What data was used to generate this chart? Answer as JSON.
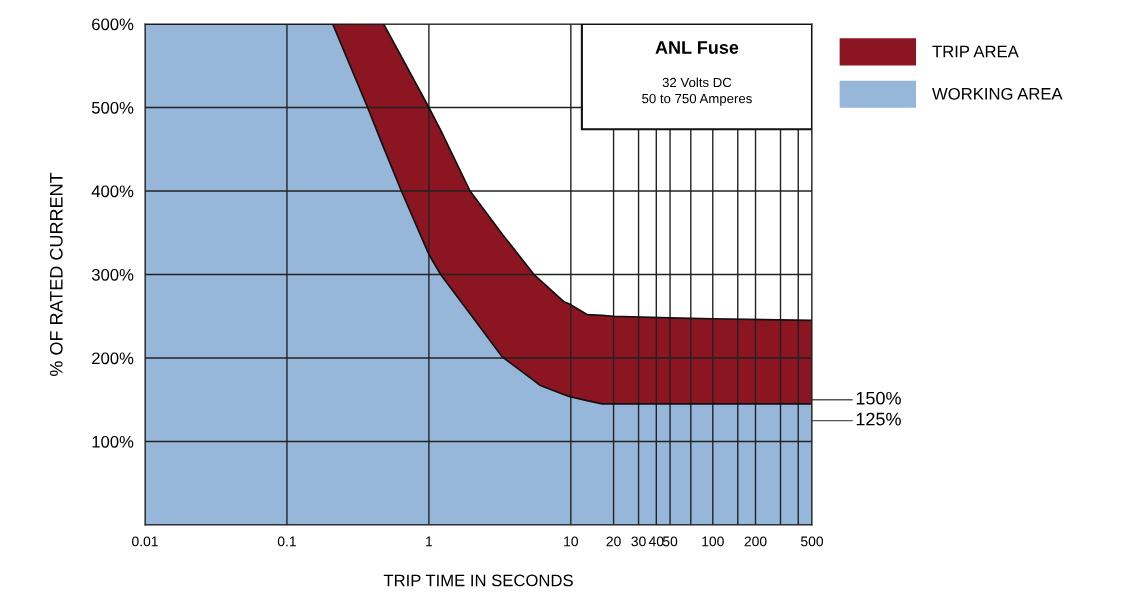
{
  "chart_data": {
    "type": "area",
    "stacked": true,
    "title": "ANL Fuse",
    "subtitle": "32 Volts DC\n50 to 750 Amperes",
    "xlabel": "TRIP TIME IN SECONDS",
    "ylabel": "% OF RATED CURRENT",
    "x": [
      0.01,
      0.21,
      0.37,
      0.48,
      0.64,
      1.0,
      1.21,
      1.95,
      3.3,
      5.5,
      6.1,
      9.0,
      9.7,
      13,
      16.6,
      20,
      50,
      100,
      500
    ],
    "series": [
      {
        "name": "WORKING AREA",
        "color": "#97b7da",
        "values": [
          600,
          600,
          500,
          452,
          400,
          324,
          300,
          253,
          201,
          173,
          167,
          156,
          154,
          149,
          145,
          145,
          145,
          145,
          145
        ]
      },
      {
        "name": "TRIP AREA",
        "color": "#8b1520",
        "values": [
          0,
          0,
          100,
          148,
          161,
          176,
          173,
          147,
          147,
          127,
          126,
          111,
          111,
          103,
          106,
          105,
          103,
          102,
          100
        ]
      }
    ],
    "log": "x",
    "xlim": [
      0.01,
      500
    ],
    "xticks": [
      0.01,
      0.1,
      1,
      10,
      20,
      30,
      40,
      50,
      {
        "value": 70,
        "label": null
      },
      100,
      {
        "value": 150,
        "label": null
      },
      200,
      {
        "value": 300,
        "label": null
      },
      {
        "value": 400,
        "label": null
      },
      500
    ],
    "ylim": [
      0,
      600
    ],
    "yticks": [
      {
        "value": 0,
        "label": null
      },
      {
        "value": 100,
        "label": "100%"
      },
      {
        "value": 200,
        "label": "200%"
      },
      {
        "value": 300,
        "label": "300%"
      },
      {
        "value": 400,
        "label": "400%"
      },
      {
        "value": 500,
        "label": "500%"
      },
      {
        "value": 600,
        "label": "600%"
      }
    ],
    "ref_lines": [
      {
        "axis": "y",
        "value": 150,
        "label": "150%"
      },
      {
        "axis": "y",
        "value": 125,
        "label": "125%"
      }
    ],
    "grid": true,
    "legend": "top right"
  }
}
